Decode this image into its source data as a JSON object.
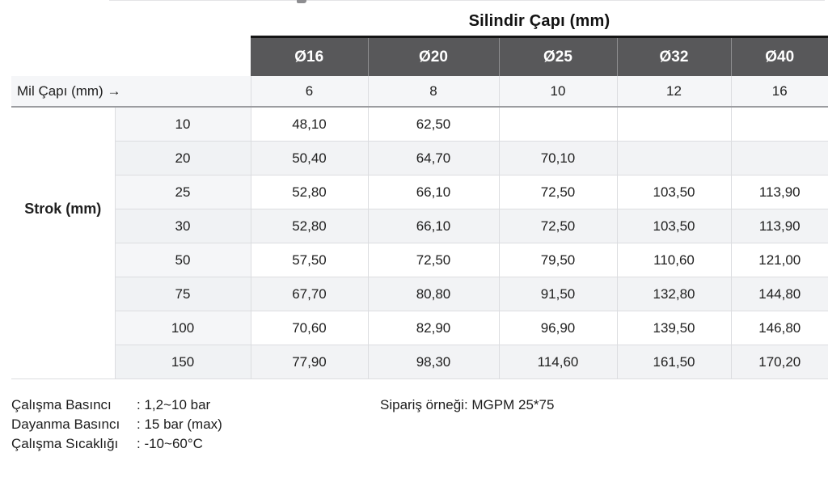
{
  "table": {
    "title": "Silindir Çapı (mm)",
    "col_headers": [
      "Ø16",
      "Ø20",
      "Ø25",
      "Ø32",
      "Ø40"
    ],
    "mil_capi": {
      "label": "Mil Çapı (mm) →",
      "values": [
        "6",
        "8",
        "10",
        "12",
        "16"
      ]
    },
    "row_group_label": "Strok (mm)",
    "rows": [
      {
        "strok": "10",
        "values": [
          "48,10",
          "62,50",
          "",
          "",
          ""
        ]
      },
      {
        "strok": "20",
        "values": [
          "50,40",
          "64,70",
          "70,10",
          "",
          ""
        ]
      },
      {
        "strok": "25",
        "values": [
          "52,80",
          "66,10",
          "72,50",
          "103,50",
          "113,90"
        ]
      },
      {
        "strok": "30",
        "values": [
          "52,80",
          "66,10",
          "72,50",
          "103,50",
          "113,90"
        ]
      },
      {
        "strok": "50",
        "values": [
          "57,50",
          "72,50",
          "79,50",
          "110,60",
          "121,00"
        ]
      },
      {
        "strok": "75",
        "values": [
          "67,70",
          "80,80",
          "91,50",
          "132,80",
          "144,80"
        ]
      },
      {
        "strok": "100",
        "values": [
          "70,60",
          "82,90",
          "96,90",
          "139,50",
          "146,80"
        ]
      },
      {
        "strok": "150",
        "values": [
          "77,90",
          "98,30",
          "114,60",
          "161,50",
          "170,20"
        ]
      }
    ]
  },
  "specs": [
    {
      "label": "Çalışma Basıncı",
      "value": ": 1,2~10 bar"
    },
    {
      "label": "Dayanma Basıncı",
      "value": ": 15 bar (max)"
    },
    {
      "label": "Çalışma Sıcaklığı",
      "value": ": -10~60°C"
    }
  ],
  "order_example": "Sipariş örneği: MGPM 25*75",
  "colors": {
    "header_bg": "#58585a",
    "header_text": "#ffffff",
    "header_top_border": "#161616",
    "zebra_row": "#f2f3f5",
    "mil_row_bg": "#f5f6f8",
    "grid_line": "#dcdde0",
    "heavy_separator": "#9b9ca0"
  }
}
